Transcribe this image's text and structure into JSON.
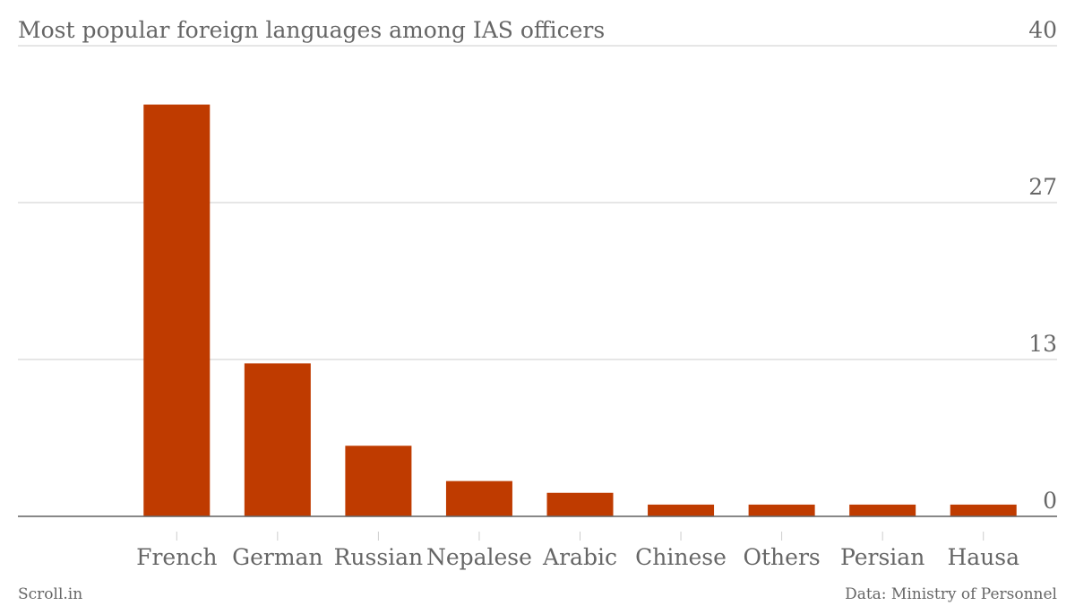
{
  "chart_data": {
    "type": "bar",
    "title": "Most popular foreign languages among IAS officers",
    "categories": [
      "French",
      "German",
      "Russian",
      "Nepalese",
      "Arabic",
      "Chinese",
      "Others",
      "Persian",
      "Hausa"
    ],
    "values": [
      35,
      13,
      6,
      3,
      2,
      1,
      1,
      1,
      1
    ],
    "color": "#bf3b00",
    "ylim": [
      0,
      40
    ],
    "yticks": [
      0,
      {
        "value": 13.33,
        "label": "13"
      },
      {
        "value": 26.67,
        "label": "27"
      },
      40
    ],
    "grid": true,
    "source": "Data: Ministry of Personnel",
    "credit": "Scroll.in"
  }
}
